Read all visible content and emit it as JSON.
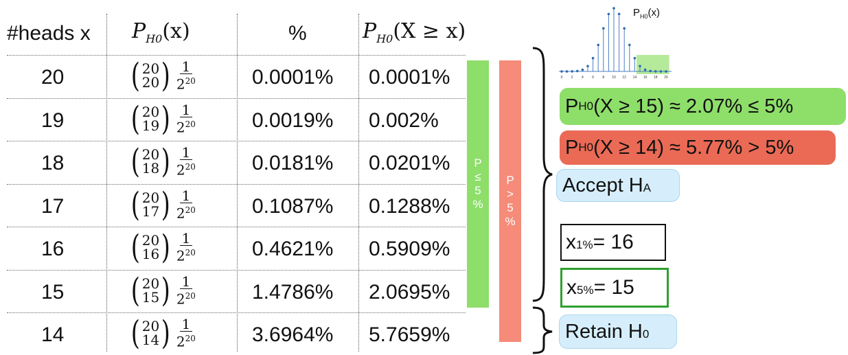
{
  "table": {
    "headers": {
      "heads": "#heads x",
      "pmf": "P",
      "pmf_sub": "H0",
      "pmf_arg": "(x)",
      "percent": "%",
      "tail": "P",
      "tail_sub": "H0",
      "tail_arg": "(X ≥ x)"
    },
    "rows": [
      {
        "x": "20",
        "k": "20",
        "pct": "0.0001%",
        "tail": "0.0001%"
      },
      {
        "x": "19",
        "k": "19",
        "pct": "0.0019%",
        "tail": "0.002%"
      },
      {
        "x": "18",
        "k": "18",
        "pct": "0.0181%",
        "tail": "0.0201%"
      },
      {
        "x": "17",
        "k": "17",
        "pct": "0.1087%",
        "tail": "0.1288%"
      },
      {
        "x": "16",
        "k": "16",
        "pct": "0.4621%",
        "tail": "0.5909%"
      },
      {
        "x": "15",
        "k": "15",
        "pct": "1.4786%",
        "tail": "2.0695%"
      },
      {
        "x": "14",
        "k": "14",
        "pct": "3.6964%",
        "tail": "5.7659%"
      }
    ],
    "binom_top": "20",
    "frac_num": "1",
    "frac_den_base": "2",
    "frac_den_exp": "20"
  },
  "bars": {
    "green": {
      "line1": "P",
      "line2": "≤",
      "line3": "5",
      "line4": "%",
      "color": "#8ede6a"
    },
    "red": {
      "line1": "P",
      "line2": ">",
      "line3": "5",
      "line4": "%",
      "color": "#f58b78"
    }
  },
  "thumb": {
    "label": "P",
    "label_sub": "H0",
    "label_arg": "(x)",
    "ticks": [
      "0",
      "2",
      "4",
      "6",
      "8",
      "10",
      "12",
      "14",
      "16",
      "18",
      "20"
    ],
    "values": [
      0.0001,
      0.0019,
      0.0181,
      0.1087,
      0.4621,
      1.4786,
      3.6964,
      7.3929,
      12.0134,
      16.0179,
      17.6197,
      16.0179,
      12.0134,
      7.3929,
      3.6964,
      1.4786,
      0.4621,
      0.1087,
      0.0181,
      0.0019,
      0.0001
    ],
    "highlight_from": 15
  },
  "right": {
    "green_pill": {
      "p": "P",
      "sub": "H0",
      "text": " (X ≥ 15) ≈ 2.07% ≤ 5%",
      "color": "#8ede6a"
    },
    "red_pill": {
      "p": "P",
      "sub": "H0",
      "text": " (X ≥ 14) ≈ 5.77% > 5%",
      "color": "#ea6a56"
    },
    "accept": {
      "main": "Accept H",
      "sub": "A"
    },
    "x1": {
      "x": "x",
      "sub": "1%",
      "val": " = 16"
    },
    "x5": {
      "x": "x",
      "sub": "5%",
      "val": " = 15"
    },
    "retain": {
      "main": "Retain H",
      "sub": "0"
    }
  }
}
